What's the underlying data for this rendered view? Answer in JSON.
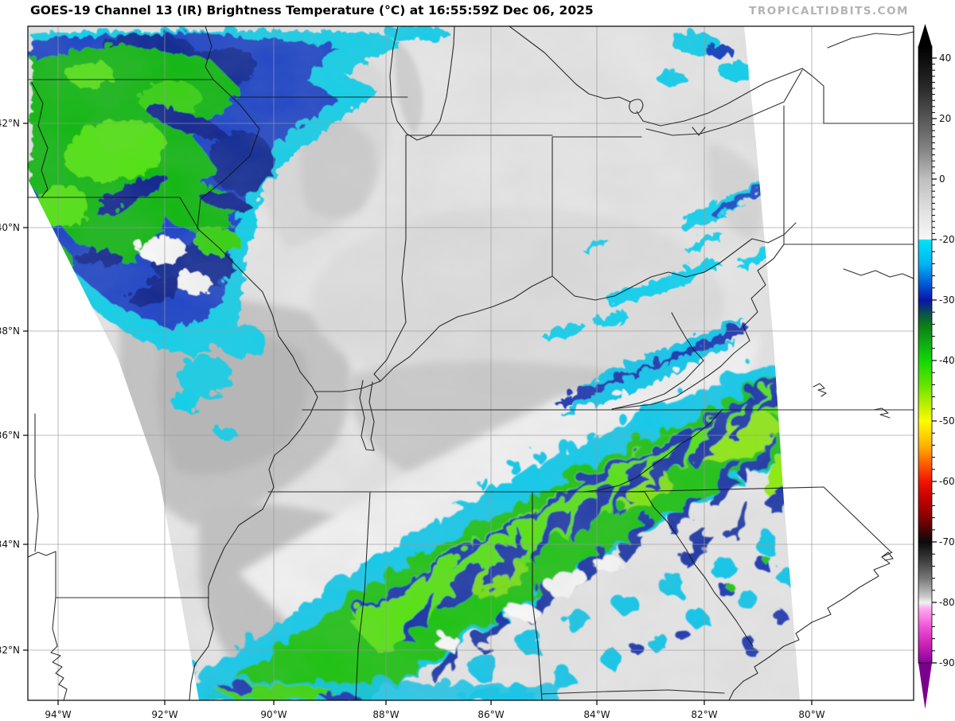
{
  "header": {
    "title": "GOES-19 Channel 13 (IR) Brightness Temperature (°C) at 16:55:59Z Dec 06, 2025",
    "watermark": "TROPICALTIDBITS.COM"
  },
  "map": {
    "longitude_labels": [
      "94°W",
      "92°W",
      "90°W",
      "88°W",
      "86°W",
      "84°W",
      "82°W",
      "80°W"
    ],
    "latitude_labels": [
      "42°N",
      "40°N",
      "38°N",
      "36°N",
      "34°N",
      "32°N"
    ]
  },
  "colorbar": {
    "tick_labels": [
      "40",
      "20",
      "0",
      "-20",
      "-30",
      "-40",
      "-50",
      "-60",
      "-70",
      "-80",
      "-90"
    ]
  },
  "colors": {
    "watermark": "#b3b3b3",
    "grid": "#999999",
    "frame": "#000000",
    "cold_cloud_green": "#0ec400",
    "cold_cloud_cyan": "#00ccee",
    "cold_cloud_navy": "#0b2aa4"
  }
}
